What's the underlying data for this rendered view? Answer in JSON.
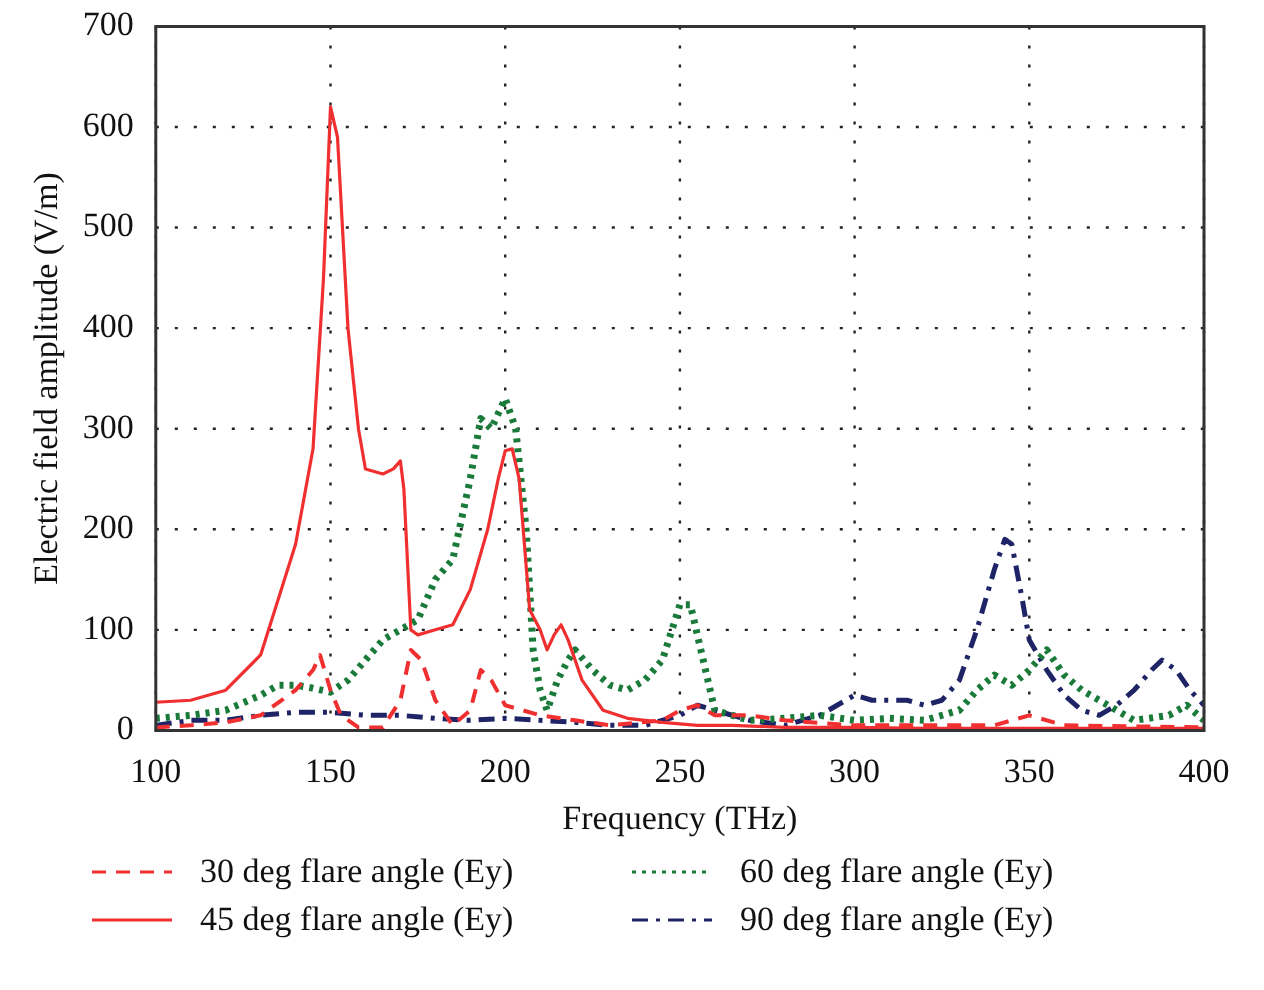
{
  "chart_data": {
    "type": "line",
    "xlabel": "Frequency (THz)",
    "ylabel": "Electric field amplitude (V/m)",
    "xlim": [
      100,
      400
    ],
    "xticks": [
      100,
      150,
      200,
      250,
      300,
      350,
      400
    ],
    "ylim": [
      0,
      700
    ],
    "yticks": [
      0,
      100,
      200,
      300,
      400,
      500,
      600,
      700
    ],
    "grid": true,
    "legend": "bottom",
    "marker": "none",
    "series": [
      {
        "name": "30 deg flare angle (Ey)",
        "color": "#f03030",
        "line_style": "dashed",
        "x": [
          100,
          110,
          120,
          130,
          140,
          145,
          147,
          150,
          153,
          158,
          165,
          170,
          173,
          176,
          180,
          185,
          190,
          193,
          196,
          200,
          210,
          220,
          230,
          245,
          250,
          255,
          260,
          270,
          280,
          300,
          340,
          350,
          360,
          400
        ],
        "values": [
          3,
          5,
          8,
          15,
          40,
          60,
          75,
          40,
          15,
          3,
          3,
          30,
          80,
          70,
          30,
          5,
          20,
          60,
          50,
          25,
          15,
          10,
          5,
          10,
          20,
          25,
          15,
          15,
          10,
          5,
          5,
          15,
          5,
          3
        ]
      },
      {
        "name": "45 deg flare angle (Ey)",
        "color": "#f03030",
        "line_style": "solid",
        "x": [
          100,
          110,
          120,
          130,
          135,
          140,
          145,
          148,
          150,
          152,
          155,
          158,
          160,
          165,
          168,
          170,
          171,
          173,
          175,
          180,
          185,
          190,
          195,
          198,
          200,
          202,
          204,
          207,
          210,
          212,
          214,
          216,
          218,
          222,
          228,
          235,
          245,
          255,
          265,
          280,
          300,
          320,
          350,
          380,
          400
        ],
        "values": [
          28,
          30,
          40,
          75,
          130,
          185,
          280,
          450,
          620,
          590,
          400,
          300,
          260,
          255,
          260,
          268,
          240,
          100,
          95,
          100,
          105,
          140,
          200,
          250,
          278,
          280,
          250,
          120,
          100,
          80,
          95,
          105,
          90,
          50,
          20,
          12,
          8,
          5,
          5,
          3,
          3,
          2,
          2,
          2,
          2
        ]
      },
      {
        "name": "60 deg flare angle (Ey)",
        "color": "#1a7a3a",
        "line_style": "dotted",
        "x": [
          100,
          110,
          120,
          130,
          135,
          140,
          145,
          150,
          155,
          160,
          165,
          170,
          175,
          180,
          185,
          190,
          193,
          196,
          200,
          203,
          206,
          208,
          210,
          212,
          215,
          218,
          220,
          225,
          230,
          235,
          240,
          245,
          250,
          253,
          256,
          260,
          265,
          270,
          280,
          290,
          300,
          310,
          320,
          330,
          335,
          340,
          345,
          350,
          355,
          360,
          365,
          370,
          380,
          390,
          395,
          400
        ],
        "values": [
          12,
          15,
          20,
          35,
          45,
          45,
          42,
          38,
          50,
          70,
          90,
          100,
          110,
          150,
          170,
          250,
          310,
          300,
          330,
          300,
          200,
          80,
          40,
          20,
          50,
          70,
          80,
          60,
          45,
          40,
          50,
          70,
          125,
          125,
          80,
          20,
          15,
          10,
          12,
          15,
          10,
          12,
          10,
          20,
          40,
          55,
          45,
          60,
          80,
          55,
          40,
          30,
          10,
          15,
          25,
          10
        ]
      },
      {
        "name": "90 deg flare angle (Ey)",
        "color": "#1e2466",
        "line_style": "dashdot",
        "x": [
          100,
          110,
          120,
          130,
          140,
          150,
          160,
          170,
          180,
          190,
          200,
          210,
          220,
          230,
          240,
          250,
          255,
          260,
          270,
          280,
          290,
          295,
          300,
          305,
          315,
          320,
          325,
          330,
          335,
          340,
          343,
          345,
          348,
          350,
          355,
          360,
          365,
          370,
          375,
          380,
          385,
          388,
          392,
          396,
          400
        ],
        "values": [
          5,
          10,
          10,
          15,
          18,
          18,
          15,
          15,
          12,
          10,
          12,
          10,
          8,
          5,
          5,
          15,
          25,
          20,
          10,
          5,
          15,
          25,
          35,
          30,
          30,
          25,
          30,
          50,
          100,
          160,
          190,
          185,
          130,
          90,
          60,
          35,
          20,
          15,
          25,
          40,
          60,
          70,
          60,
          40,
          25
        ]
      }
    ]
  }
}
